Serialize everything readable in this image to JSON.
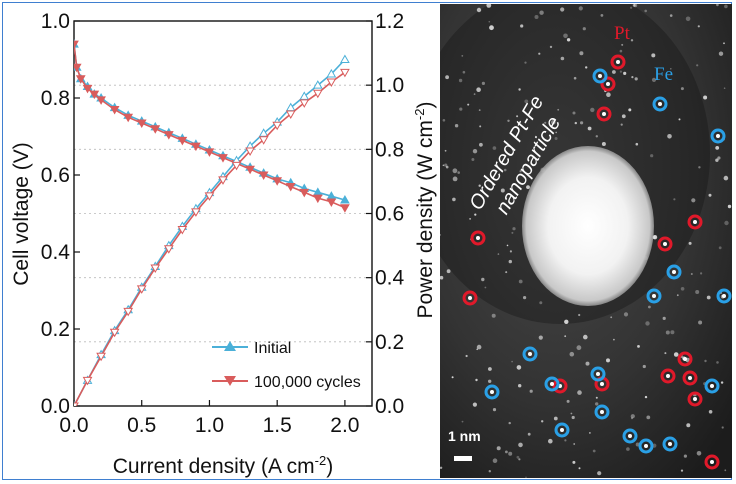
{
  "chart_data": {
    "type": "line",
    "xlabel": "Current density (A cm⁻²)",
    "xlabel_main": "Current density (A cm",
    "xlabel_sup": "-2",
    "xlabel_close": ")",
    "ylabel_left": "Cell voltage (V)",
    "ylabel_right_main": "Power density (W cm",
    "ylabel_right_sup": "-2",
    "ylabel_right_close": ")",
    "xlim": [
      0,
      2.2
    ],
    "ylim_left": [
      0,
      1.0
    ],
    "ylim_right": [
      0,
      1.2
    ],
    "x_ticks": [
      "0.0",
      "0.5",
      "1.0",
      "1.5",
      "2.0"
    ],
    "y_left_ticks": [
      "0.0",
      "0.2",
      "0.4",
      "0.6",
      "0.8",
      "1.0"
    ],
    "y_right_ticks": [
      "0.0",
      "0.2",
      "0.4",
      "0.6",
      "0.8",
      "1.0",
      "1.2"
    ],
    "legend_position": "bottom-right",
    "series": [
      {
        "name": "Initial",
        "color": "#4bb0d8",
        "marker": "triangle-up",
        "axis": "left",
        "kind": "voltage",
        "x": [
          0.0,
          0.02,
          0.05,
          0.1,
          0.15,
          0.2,
          0.3,
          0.4,
          0.5,
          0.6,
          0.7,
          0.8,
          0.9,
          1.0,
          1.1,
          1.2,
          1.3,
          1.4,
          1.5,
          1.6,
          1.7,
          1.8,
          1.9,
          2.0
        ],
        "y": [
          0.94,
          0.88,
          0.85,
          0.83,
          0.81,
          0.8,
          0.775,
          0.755,
          0.74,
          0.725,
          0.71,
          0.695,
          0.68,
          0.665,
          0.65,
          0.635,
          0.62,
          0.605,
          0.59,
          0.58,
          0.565,
          0.555,
          0.545,
          0.535
        ]
      },
      {
        "name": "100,000 cycles",
        "color": "#d95c5c",
        "marker": "triangle-down",
        "axis": "left",
        "kind": "voltage",
        "x": [
          0.0,
          0.02,
          0.05,
          0.1,
          0.15,
          0.2,
          0.3,
          0.4,
          0.5,
          0.6,
          0.7,
          0.8,
          0.9,
          1.0,
          1.1,
          1.2,
          1.3,
          1.4,
          1.5,
          1.6,
          1.7,
          1.8,
          1.9,
          2.0
        ],
        "y": [
          0.94,
          0.88,
          0.85,
          0.825,
          0.81,
          0.795,
          0.77,
          0.75,
          0.735,
          0.72,
          0.705,
          0.69,
          0.675,
          0.66,
          0.645,
          0.63,
          0.615,
          0.6,
          0.585,
          0.57,
          0.555,
          0.54,
          0.53,
          0.515
        ]
      },
      {
        "name": "Initial",
        "color": "#4bb0d8",
        "marker": "triangle-up",
        "axis": "right",
        "kind": "power",
        "x": [
          0.0,
          0.1,
          0.2,
          0.3,
          0.4,
          0.5,
          0.6,
          0.7,
          0.8,
          0.9,
          1.0,
          1.1,
          1.2,
          1.3,
          1.4,
          1.5,
          1.6,
          1.7,
          1.8,
          1.9,
          2.0
        ],
        "y": [
          0.0,
          0.08,
          0.16,
          0.235,
          0.3,
          0.37,
          0.435,
          0.5,
          0.56,
          0.615,
          0.665,
          0.715,
          0.765,
          0.81,
          0.85,
          0.885,
          0.93,
          0.965,
          1.0,
          1.035,
          1.08
        ]
      },
      {
        "name": "100,000 cycles",
        "color": "#d95c5c",
        "marker": "triangle-down",
        "axis": "right",
        "kind": "power",
        "x": [
          0.0,
          0.1,
          0.2,
          0.3,
          0.4,
          0.5,
          0.6,
          0.7,
          0.8,
          0.9,
          1.0,
          1.1,
          1.2,
          1.3,
          1.4,
          1.5,
          1.6,
          1.7,
          1.8,
          1.9,
          2.0
        ],
        "y": [
          0.0,
          0.08,
          0.155,
          0.23,
          0.295,
          0.365,
          0.43,
          0.49,
          0.55,
          0.605,
          0.655,
          0.705,
          0.75,
          0.795,
          0.83,
          0.875,
          0.91,
          0.945,
          0.975,
          1.01,
          1.04
        ]
      }
    ]
  },
  "micrograph": {
    "pt_label": "Pt",
    "fe_label": "Fe",
    "particle_label_line1": "Ordered Pt-Fe",
    "particle_label_line2": "nanoparticle",
    "scale_bar_label": "1 nm",
    "pt_color": "#e0192a",
    "fe_color": "#2aa0e6"
  }
}
